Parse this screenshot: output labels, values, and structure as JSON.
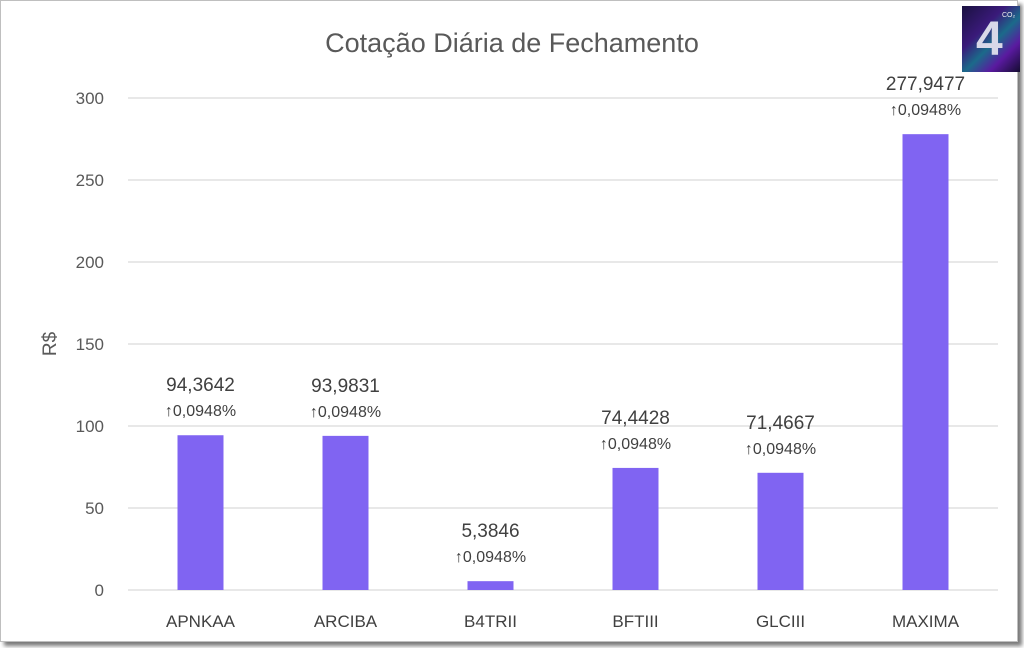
{
  "chart_data": {
    "type": "bar",
    "title": "Cotação Diária de Fechamento",
    "xlabel": "",
    "ylabel": "R$",
    "ylim": [
      0,
      300
    ],
    "yticks": [
      0,
      50,
      100,
      150,
      200,
      250,
      300
    ],
    "grid": true,
    "categories": [
      "APNKAA",
      "ARCIBA",
      "B4TRII",
      "BFTIII",
      "GLCIII",
      "MAXIMA"
    ],
    "values": [
      94.3642,
      93.9831,
      5.3846,
      74.4428,
      71.4667,
      277.9477
    ],
    "value_labels": [
      "94,3642",
      "93,9831",
      "5,3846",
      "74,4428",
      "71,4667",
      "277,9477"
    ],
    "change_labels": [
      "↑0,0948%",
      "↑0,0948%",
      "↑0,0948%",
      "↑0,0948%",
      "↑0,0948%",
      "↑0,0948%"
    ],
    "bar_color": "#8064f2"
  },
  "logo": {
    "text": "4",
    "sub": "CO₂"
  }
}
